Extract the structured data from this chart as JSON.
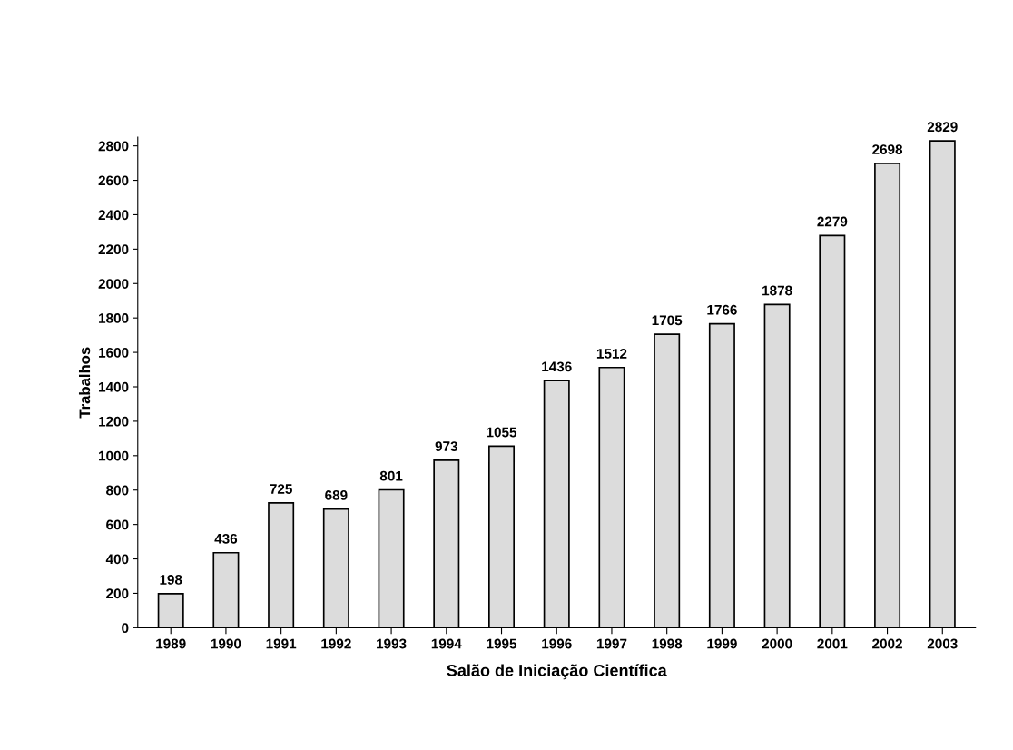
{
  "chart_data": {
    "type": "bar",
    "xlabel": "Salão de Iniciação Científica",
    "ylabel": "Trabalhos",
    "categories": [
      "1989",
      "1990",
      "1991",
      "1992",
      "1993",
      "1994",
      "1995",
      "1996",
      "1997",
      "1998",
      "1999",
      "2000",
      "2001",
      "2002",
      "2003"
    ],
    "values": [
      198,
      436,
      725,
      689,
      801,
      973,
      1055,
      1436,
      1512,
      1705,
      1766,
      1878,
      2279,
      2698,
      2829
    ],
    "color": "#dcdcdc",
    "ylim": [
      0,
      2850
    ],
    "yticks": [
      0,
      200,
      400,
      600,
      800,
      1000,
      1200,
      1400,
      1600,
      1800,
      2000,
      2200,
      2400,
      2600,
      2800
    ],
    "data_labels": true,
    "grid": false,
    "legend": false
  }
}
